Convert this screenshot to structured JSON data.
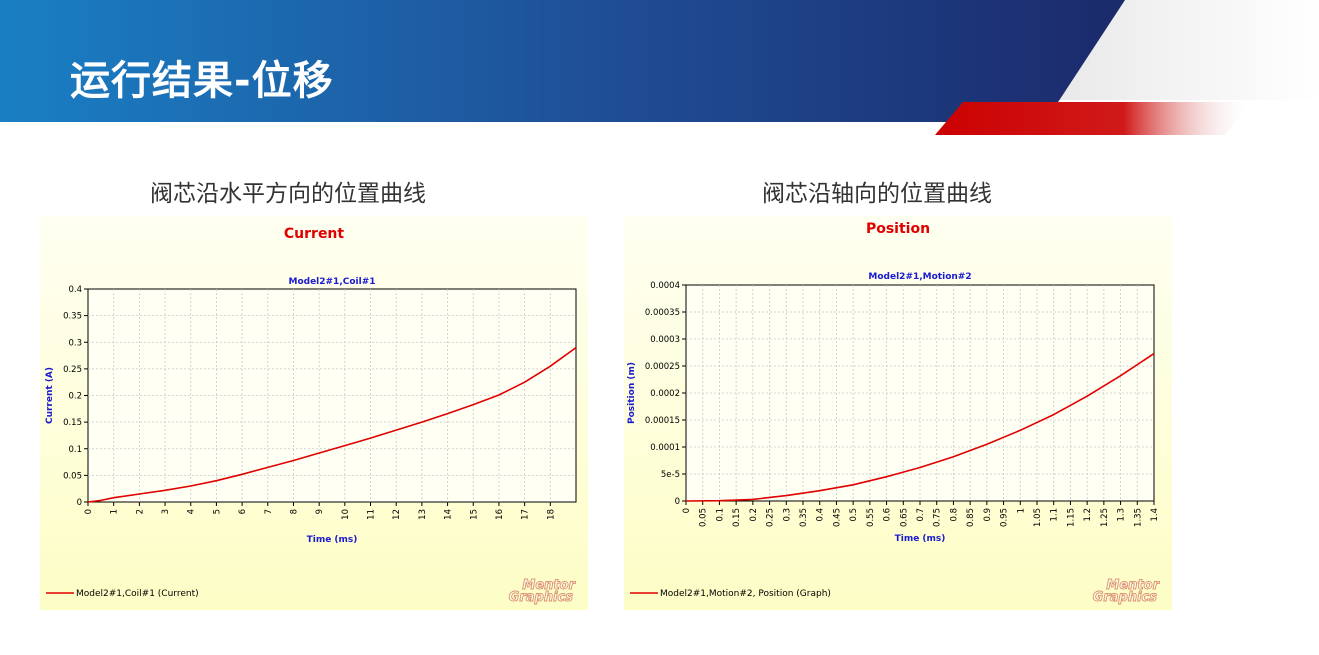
{
  "slide": {
    "title": "运行结果-位移",
    "captions": [
      "阀芯沿水平方向的位置曲线",
      "阀芯沿轴向的位置曲线"
    ]
  },
  "colors": {
    "banner_dark": "#1b2a6b",
    "banner_light": "#1a7fc4",
    "accent_red": "#cc0000",
    "chart_bg_top": "#fffff2",
    "chart_bg_bottom": "#fdfdc6",
    "series": "#e00000",
    "title_red": "#e00000",
    "label_blue": "#1a1ad0"
  },
  "chart_data": [
    {
      "type": "line",
      "title": "Current",
      "subtitle": "Model2#1,Coil#1",
      "xlabel": "Time (ms)",
      "ylabel": "Current (A)",
      "xlim": [
        0,
        19
      ],
      "ylim": [
        0,
        0.4
      ],
      "x_ticks": [
        "0",
        "1",
        "2",
        "3",
        "4",
        "5",
        "6",
        "7",
        "8",
        "9",
        "10",
        "11",
        "12",
        "13",
        "14",
        "15",
        "16",
        "17",
        "18"
      ],
      "y_ticks": [
        "0",
        "0.05",
        "0.1",
        "0.15",
        "0.2",
        "0.25",
        "0.3",
        "0.35",
        "0.4"
      ],
      "x_tick_values": [
        0,
        1,
        2,
        3,
        4,
        5,
        6,
        7,
        8,
        9,
        10,
        11,
        12,
        13,
        14,
        15,
        16,
        17,
        18
      ],
      "y_tick_values": [
        0,
        0.05,
        0.1,
        0.15,
        0.2,
        0.25,
        0.3,
        0.35,
        0.4
      ],
      "grid": true,
      "legend_position": "bottom-left",
      "logo": "Mentor Graphics",
      "series": [
        {
          "name": "Model2#1,Coil#1 (Current)",
          "x": [
            0,
            0.5,
            1,
            2,
            3,
            4,
            5,
            6,
            7,
            8,
            9,
            10,
            11,
            12,
            13,
            14,
            15,
            16,
            17,
            18,
            19
          ],
          "values": [
            0,
            0.003,
            0.008,
            0.015,
            0.022,
            0.03,
            0.04,
            0.052,
            0.065,
            0.078,
            0.092,
            0.106,
            0.12,
            0.135,
            0.15,
            0.166,
            0.183,
            0.201,
            0.225,
            0.255,
            0.29
          ]
        }
      ]
    },
    {
      "type": "line",
      "title": "Position",
      "subtitle": "Model2#1,Motion#2",
      "xlabel": "Time (ms)",
      "ylabel": "Position (m)",
      "xlim": [
        0,
        1.4
      ],
      "ylim": [
        0,
        0.0004
      ],
      "x_ticks": [
        "0",
        "0.05",
        "0.1",
        "0.15",
        "0.2",
        "0.25",
        "0.3",
        "0.35",
        "0.4",
        "0.45",
        "0.5",
        "0.55",
        "0.6",
        "0.65",
        "0.7",
        "0.75",
        "0.8",
        "0.85",
        "0.9",
        "0.95",
        "1",
        "1.05",
        "1.1",
        "1.15",
        "1.2",
        "1.25",
        "1.3",
        "1.35",
        "1.4"
      ],
      "y_ticks": [
        "0",
        "5e-5",
        "0.0001",
        "0.00015",
        "0.0002",
        "0.00025",
        "0.0003",
        "0.00035",
        "0.0004"
      ],
      "x_tick_values": [
        0,
        0.05,
        0.1,
        0.15,
        0.2,
        0.25,
        0.3,
        0.35,
        0.4,
        0.45,
        0.5,
        0.55,
        0.6,
        0.65,
        0.7,
        0.75,
        0.8,
        0.85,
        0.9,
        0.95,
        1,
        1.05,
        1.1,
        1.15,
        1.2,
        1.25,
        1.3,
        1.35,
        1.4
      ],
      "y_tick_values": [
        0,
        5e-05,
        0.0001,
        0.00015,
        0.0002,
        0.00025,
        0.0003,
        0.00035,
        0.0004
      ],
      "grid": true,
      "legend_position": "bottom-left",
      "logo": "Mentor Graphics",
      "series": [
        {
          "name": "Model2#1,Motion#2, Position (Graph)",
          "x": [
            0,
            0.1,
            0.2,
            0.3,
            0.4,
            0.5,
            0.6,
            0.7,
            0.8,
            0.9,
            1.0,
            1.1,
            1.2,
            1.3,
            1.4
          ],
          "values": [
            0,
            5e-07,
            3e-06,
            1e-05,
            1.9e-05,
            3e-05,
            4.5e-05,
            6.2e-05,
            8.2e-05,
            0.000105,
            0.000131,
            0.00016,
            0.000194,
            0.000232,
            0.000273
          ]
        }
      ]
    }
  ]
}
